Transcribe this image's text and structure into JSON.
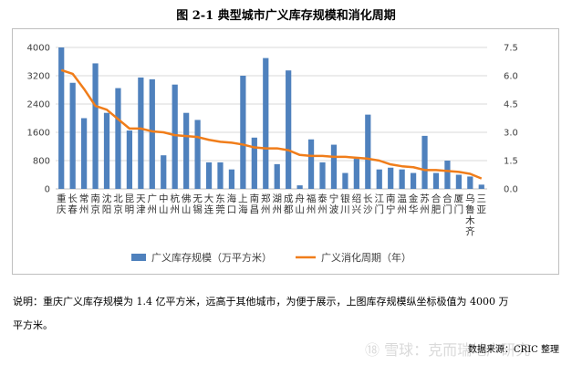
{
  "figure": {
    "title": "图 2-1   典型城市广义库存规模和消化周期"
  },
  "note": {
    "line1": "说明：重庆广义库存规模为 1.4 亿平方米，远高于其他城市，为便于展示，上图库存规模纵坐标极值为 4000 万",
    "line2": "平方米。"
  },
  "watermark": "⑱ 雪球：克而瑞地产研究",
  "source": "数据来源：CRIC 整理",
  "colors": {
    "bar": "#4f81bd",
    "line": "#f07d1a",
    "grid": "#d9d9d9"
  },
  "chart_data": {
    "type": "bar",
    "categories": [
      "重庆",
      "长春",
      "常州",
      "南京",
      "沈阳",
      "北京",
      "昆明",
      "天津",
      "广州",
      "中山",
      "杭州",
      "佛山",
      "无锡",
      "大连",
      "东莞",
      "海口",
      "上海",
      "南昌",
      "郑州",
      "湖州",
      "成都",
      "舟山",
      "福州",
      "泰州",
      "宁波",
      "银川",
      "绍兴",
      "长沙",
      "江门",
      "南宁",
      "温州",
      "金华",
      "苏州",
      "合肥",
      "合门",
      "厦门",
      "乌鲁木齐",
      "三亚"
    ],
    "series": [
      {
        "name": "广义库存规模（万平方米）",
        "axis": "left",
        "chart": "bar",
        "values": [
          4000,
          3000,
          2000,
          3550,
          2150,
          2850,
          1650,
          3150,
          3100,
          950,
          2950,
          2150,
          1950,
          750,
          750,
          550,
          3200,
          1450,
          3700,
          700,
          3350,
          100,
          1400,
          750,
          1250,
          450,
          850,
          2100,
          550,
          600,
          550,
          450,
          1500,
          450,
          800,
          400,
          350,
          120
        ]
      },
      {
        "name": "广义消化周期（年）",
        "axis": "right",
        "chart": "line",
        "values": [
          6.3,
          6.1,
          5.3,
          4.4,
          4.2,
          3.7,
          3.2,
          3.2,
          3.05,
          3.0,
          2.85,
          2.8,
          2.75,
          2.6,
          2.5,
          2.45,
          2.35,
          2.2,
          2.15,
          2.15,
          2.05,
          1.8,
          1.75,
          1.75,
          1.7,
          1.7,
          1.65,
          1.6,
          1.5,
          1.3,
          1.2,
          1.15,
          1.0,
          1.0,
          0.95,
          0.9,
          0.8,
          0.55
        ]
      }
    ],
    "ylim": [
      0,
      4000
    ],
    "y2lim": [
      0,
      7.5
    ],
    "yticks": [
      "0",
      "800",
      "1600",
      "2400",
      "3200",
      "4000"
    ],
    "y2ticks": [
      "0.0",
      "1.5",
      "3.0",
      "4.5",
      "6.0",
      "7.5"
    ],
    "grid": true,
    "legend_position": "bottom"
  }
}
